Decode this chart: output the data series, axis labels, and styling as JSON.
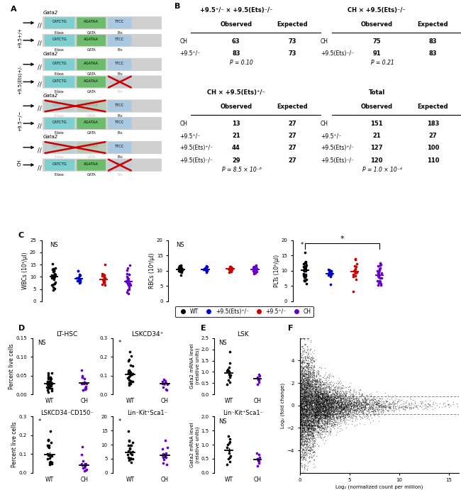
{
  "colors": {
    "wt": "#000000",
    "ets_het": "#0000cc",
    "plus95_het": "#cc0000",
    "ch": "#6600cc",
    "cyan_box": "#7ecfcf",
    "green_box": "#6dbb6d",
    "blue_box": "#aac8e0",
    "gray_bar": "#d0d0d0",
    "red_cross": "#cc0000"
  },
  "panel_B": {
    "t1_title": "+9.5+/- x +9.5(Ets)-/-",
    "t1_rows": [
      [
        "CH",
        "63",
        "73"
      ],
      [
        "+9.5+/-",
        "83",
        "73"
      ]
    ],
    "t1_pval": "P = 0.10",
    "t2_title": "CH x +9.5(Ets)-/-",
    "t2_rows": [
      [
        "CH",
        "75",
        "83"
      ],
      [
        "+9.5(Ets)-/-",
        "91",
        "83"
      ]
    ],
    "t2_pval": "P = 0.21",
    "t3_title": "CH x +9.5(Ets)+/-",
    "t3_rows": [
      [
        "CH",
        "13",
        "27"
      ],
      [
        "+9.5+/-",
        "21",
        "27"
      ],
      [
        "+9.5(Ets)+/-",
        "44",
        "27"
      ],
      [
        "+9.5(Ets)-/-",
        "29",
        "27"
      ]
    ],
    "t3_pval": "P = 8.5 x 10-6",
    "t4_title": "Total",
    "t4_rows": [
      [
        "CH",
        "151",
        "183"
      ],
      [
        "+9.5+/-",
        "21",
        "27"
      ],
      [
        "+9.5(Ets)+/-",
        "127",
        "100"
      ],
      [
        "+9.5(Ets)-/-",
        "120",
        "110"
      ]
    ],
    "t4_pval": "P = 1.0 x 10-4"
  }
}
